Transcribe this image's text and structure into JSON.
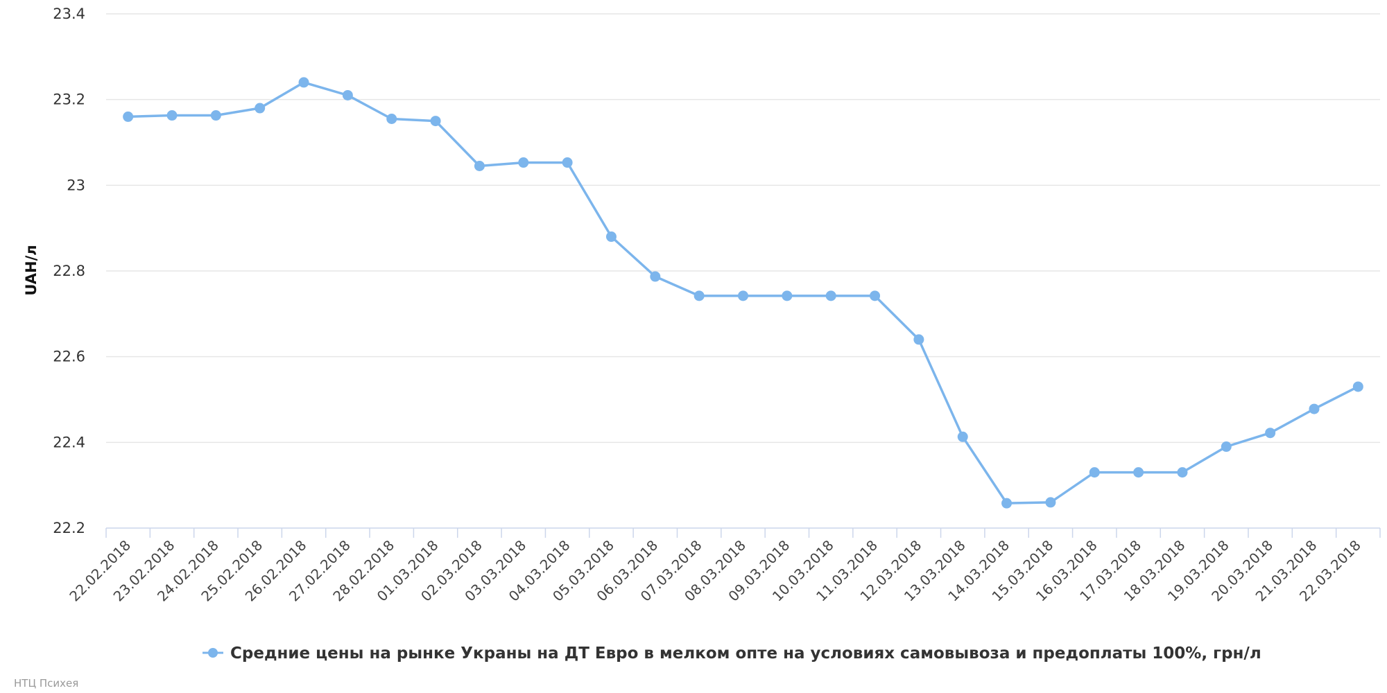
{
  "chart_data": {
    "type": "line",
    "title": "",
    "xlabel": "",
    "ylabel": "UAH/л",
    "ylim": [
      22.2,
      23.4
    ],
    "yticks": [
      "22.2",
      "22.4",
      "22.6",
      "22.8",
      "23",
      "23.2",
      "23.4"
    ],
    "grid": true,
    "legend_position": "bottom-center",
    "categories": [
      "22.02.2018",
      "23.02.2018",
      "24.02.2018",
      "25.02.2018",
      "26.02.2018",
      "27.02.2018",
      "28.02.2018",
      "01.03.2018",
      "02.03.2018",
      "03.03.2018",
      "04.03.2018",
      "05.03.2018",
      "06.03.2018",
      "07.03.2018",
      "08.03.2018",
      "09.03.2018",
      "10.03.2018",
      "11.03.2018",
      "12.03.2018",
      "13.03.2018",
      "14.03.2018",
      "15.03.2018",
      "16.03.2018",
      "17.03.2018",
      "18.03.2018",
      "19.03.2018",
      "20.03.2018",
      "21.03.2018",
      "22.03.2018"
    ],
    "series": [
      {
        "name": "Средние цены на рынке Украны на ДТ Евро в мелком опте на условиях самовывоза и предоплаты 100%, грн/л",
        "color": "#7cb5ec",
        "values": [
          23.16,
          23.163,
          23.163,
          23.18,
          23.24,
          23.21,
          23.155,
          23.15,
          23.045,
          23.053,
          23.053,
          22.88,
          22.787,
          22.742,
          22.742,
          22.742,
          22.742,
          22.742,
          22.64,
          22.413,
          22.258,
          22.26,
          22.33,
          22.33,
          22.33,
          22.39,
          22.422,
          22.478,
          22.53
        ]
      }
    ]
  },
  "credit": "НТЦ Психея"
}
